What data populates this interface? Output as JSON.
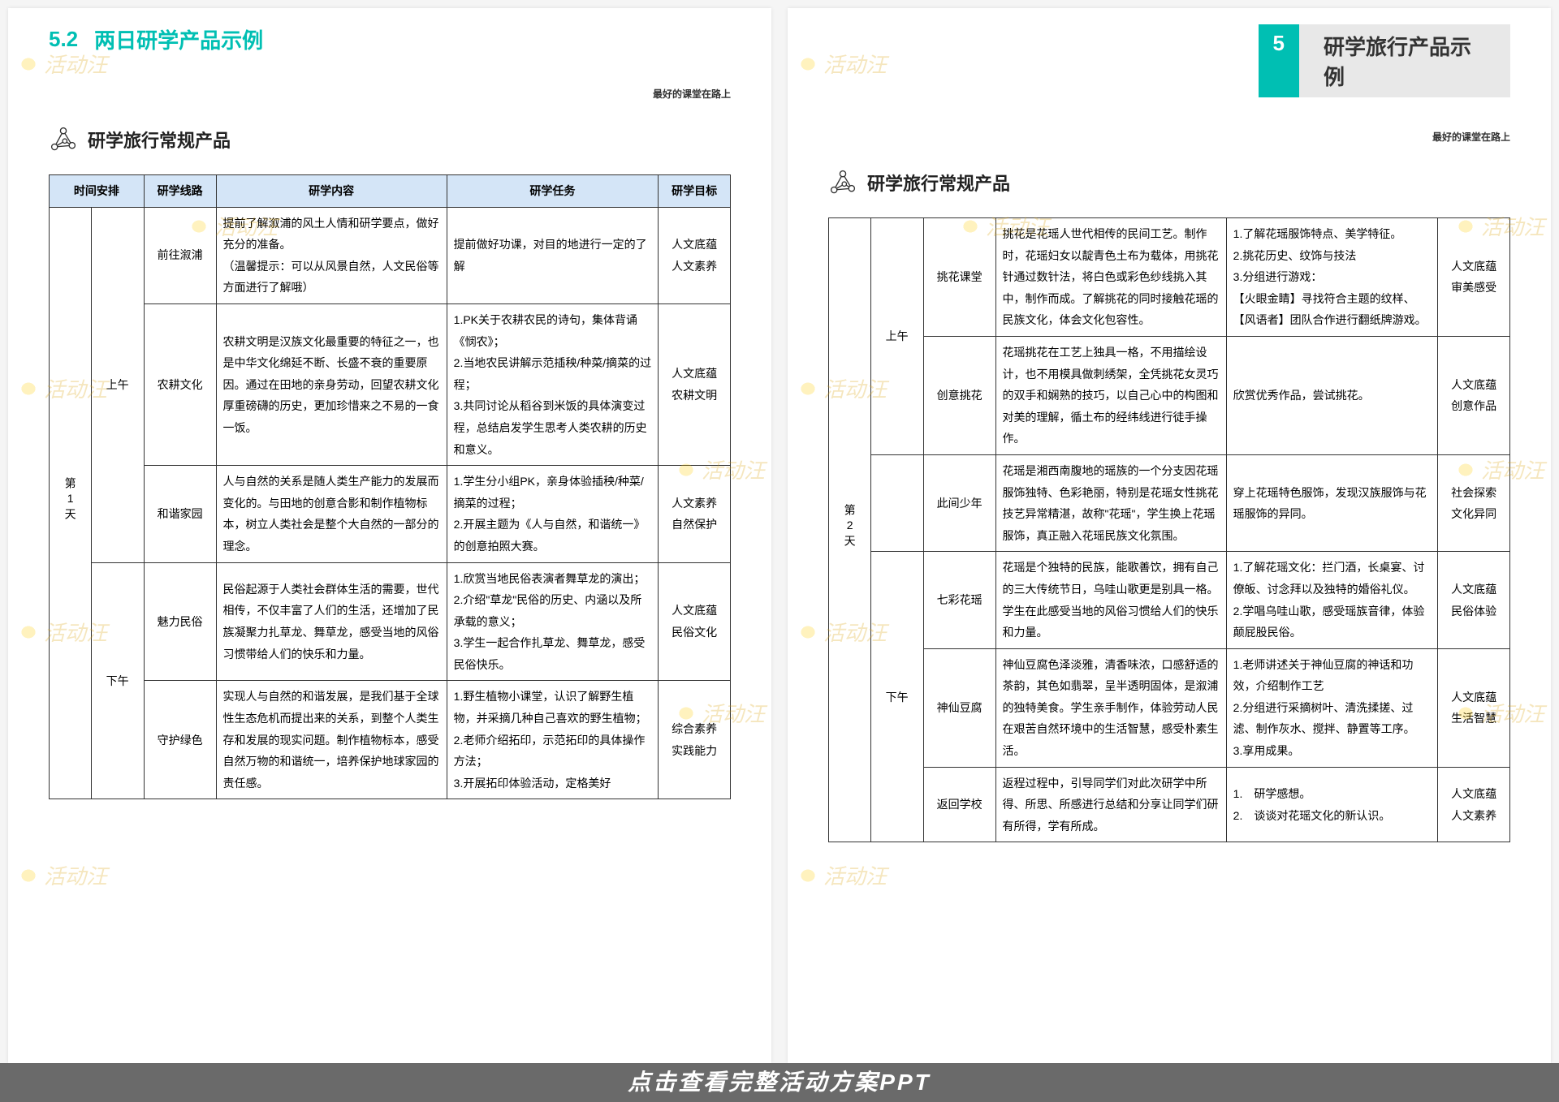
{
  "colors": {
    "accent": "#00bfb3",
    "header_bg": "#d4e5f7",
    "page_bg": "#ffffff",
    "border": "#333333",
    "footer_bg": "#6a6a6a"
  },
  "watermark_text": "活动汪",
  "footer_banner": "点击查看完整活动方案PPT",
  "left_page": {
    "section_num": "5.2",
    "section_title": "两日研学产品示例",
    "tagline": "最好的课堂在路上",
    "subheader": "研学旅行常规产品",
    "table_headers": [
      "时间安排",
      "研学线路",
      "研学内容",
      "研学任务",
      "研学目标"
    ],
    "day_label": "第1天",
    "periods": {
      "am": "上午",
      "pm": "下午"
    },
    "rows": [
      {
        "period": "am",
        "route": "前往溆浦",
        "content": "提前了解溆浦的风土人情和研学要点，做好充分的准备。\n（温馨提示：可以从风景自然，人文民俗等方面进行了解哦）",
        "task": "提前做好功课，对目的地进行一定的了解",
        "goal": "人文底蕴\n人文素养"
      },
      {
        "period": "am",
        "route": "农耕文化",
        "content": "农耕文明是汉族文化最重要的特征之一，也是中华文化绵延不断、长盛不衰的重要原因。通过在田地的亲身劳动，回望农耕文化厚重磅礴的历史，更加珍惜来之不易的一食一饭。",
        "task": "1.PK关于农耕农民的诗句，集体背诵《悯农》；\n2.当地农民讲解示范插秧/种菜/摘菜的过程；\n3.共同讨论从稻谷到米饭的具体演变过程，总结启发学生思考人类农耕的历史和意义。",
        "goal": "人文底蕴\n农耕文明"
      },
      {
        "period": "am",
        "route": "和谐家园",
        "content": "人与自然的关系是随人类生产能力的发展而变化的。与田地的创意合影和制作植物标本，树立人类社会是整个大自然的一部分的理念。",
        "task": "1.学生分小组PK，亲身体验插秧/种菜/摘菜的过程；\n2.开展主题为《人与自然，和谐统一》的创意拍照大赛。",
        "goal": "人文素养\n自然保护"
      },
      {
        "period": "pm",
        "route": "魅力民俗",
        "content": "民俗起源于人类社会群体生活的需要，世代相传，不仅丰富了人们的生活，还增加了民族凝聚力扎草龙、舞草龙，感受当地的风俗习惯带给人们的快乐和力量。",
        "task": "1.欣赏当地民俗表演者舞草龙的演出；\n2.介绍\"草龙\"民俗的历史、内涵以及所承载的意义；\n3.学生一起合作扎草龙、舞草龙，感受民俗快乐。",
        "goal": "人文底蕴\n民俗文化"
      },
      {
        "period": "pm",
        "route": "守护绿色",
        "content": "实现人与自然的和谐发展，是我们基于全球性生态危机而提出来的关系，到整个人类生存和发展的现实问题。制作植物标本，感受自然万物的和谐统一，培养保护地球家园的责任感。",
        "task": "1.野生植物小课堂，认识了解野生植物，并采摘几种自己喜欢的野生植物；\n2.老师介绍拓印，示范拓印的具体操作方法；\n3.开展拓印体验活动，定格美好",
        "goal": "综合素养\n实践能力"
      }
    ]
  },
  "right_page": {
    "badge": "5",
    "title": "研学旅行产品示例",
    "tagline": "最好的课堂在路上",
    "subheader": "研学旅行常规产品",
    "day_label": "第2天",
    "periods": {
      "am": "上午",
      "pm": "下午"
    },
    "rows": [
      {
        "period": "am",
        "route": "挑花课堂",
        "content": "挑花是花瑶人世代相传的民间工艺。制作时，花瑶妇女以靛青色土布为载体，用挑花针通过数针法，将白色或彩色纱线挑入其中，制作而成。了解挑花的同时接触花瑶的民族文化，体会文化包容性。",
        "task": "1.了解花瑶服饰特点、美学特征。\n2.挑花历史、纹饰与技法\n3.分组进行游戏：\n【火眼金睛】寻找符合主题的纹样、【风语者】团队合作进行翻纸牌游戏。",
        "goal": "人文底蕴\n审美感受"
      },
      {
        "period": "am",
        "route": "创意挑花",
        "content": "花瑶挑花在工艺上独具一格，不用描绘设计，也不用模具做刺绣架，全凭挑花女灵巧的双手和娴熟的技巧，以自己心中的构图和对美的理解，循土布的经纬线进行徒手操作。",
        "task": "欣赏优秀作品，尝试挑花。",
        "goal": "人文底蕴\n创意作品"
      },
      {
        "period": "",
        "route": "此间少年",
        "content": "花瑶是湘西南腹地的瑶族的一个分支因花瑶服饰独特、色彩艳丽，特别是花瑶女性挑花技艺异常精湛，故称\"花瑶\"，学生换上花瑶服饰，真正融入花瑶民族文化氛围。",
        "task": "穿上花瑶特色服饰，发现汉族服饰与花瑶服饰的异同。",
        "goal": "社会探索\n文化异同"
      },
      {
        "period": "pm",
        "route": "七彩花瑶",
        "content": "花瑶是个独特的民族，能歌善饮，拥有自己的三大传统节日，乌哇山歌更是别具一格。学生在此感受当地的风俗习惯给人们的快乐和力量。",
        "task": "1.了解花瑶文化：拦门酒，长桌宴、讨僚皈、讨念拜以及独特的婚俗礼仪。\n2.学唱乌哇山歌，感受瑶族音律，体验颠屁股民俗。",
        "goal": "人文底蕴\n民俗体验"
      },
      {
        "period": "pm",
        "route": "神仙豆腐",
        "content": "神仙豆腐色泽淡雅，清香味浓，口感舒适的茶韵，其色如翡翠，呈半透明固体，是溆浦的独特美食。学生亲手制作，体验劳动人民在艰苦自然环境中的生活智慧，感受朴素生活。",
        "task": "1.老师讲述关于神仙豆腐的神话和功效，介绍制作工艺\n2.分组进行采摘树叶、清洗揉搓、过滤、制作灰水、搅拌、静置等工序。\n3.享用成果。",
        "goal": "人文底蕴\n生活智慧"
      },
      {
        "period": "pm",
        "route": "返回学校",
        "content": "返程过程中，引导同学们对此次研学中所得、所思、所感进行总结和分享让同学们研有所得，学有所成。",
        "task": "1.　研学感想。\n2.　谈谈对花瑶文化的新认识。",
        "goal": "人文底蕴\n人文素养"
      }
    ]
  }
}
